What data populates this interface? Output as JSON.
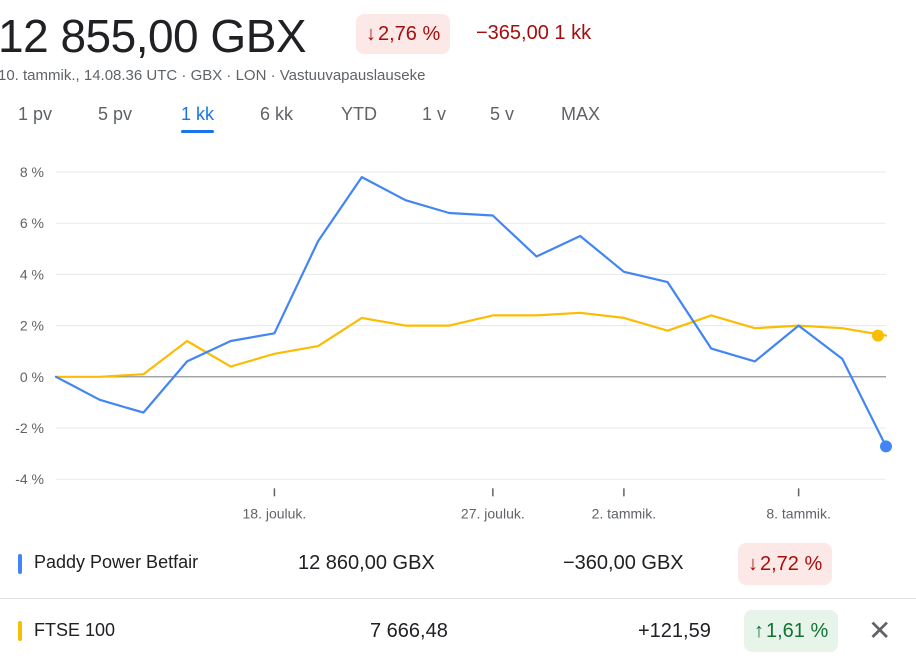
{
  "header": {
    "price": "12 855,00 GBX",
    "change_pct": "2,76 %",
    "change_pct_arrow": "down-arrow",
    "change_abs": "−365,00 1 kk",
    "meta": "10. tammik., 14.08.36 UTC · GBX · LON · Vastuuvapauslauseke"
  },
  "tabs": [
    "1 pv",
    "5 pv",
    "1 kk",
    "6 kk",
    "YTD",
    "1 v",
    "5 v",
    "MAX"
  ],
  "active_tab": "1 kk",
  "legend": [
    {
      "name": "Paddy Power Betfair",
      "value": "12 860,00 GBX",
      "change": "−360,00 GBX",
      "change_pct": "2,72 %",
      "direction": "down",
      "color": "#4285f4"
    },
    {
      "name": "FTSE 100",
      "value": "7 666,48",
      "change": "+121,59",
      "change_pct": "1,61 %",
      "direction": "up",
      "color": "#fbbc04"
    }
  ],
  "close_icon": "close-icon",
  "colors": {
    "negative": "#a50e0e",
    "negative_bg": "#fce8e6",
    "positive": "#137333",
    "positive_bg": "#e6f4ea",
    "accent": "#1a73e8"
  },
  "chart_data": {
    "type": "line",
    "y_tick_labels": [
      "8 %",
      "6 %",
      "4 %",
      "2 %",
      "0 %",
      "-2 %",
      "-4 %"
    ],
    "y_ticks": [
      8,
      6,
      4,
      2,
      0,
      -2,
      -4
    ],
    "ylim": [
      -4.2,
      8.2
    ],
    "x_tick_labels": [
      {
        "label": "18. jouluk.",
        "index": 5
      },
      {
        "label": "27. jouluk.",
        "index": 10
      },
      {
        "label": "2. tammik.",
        "index": 13
      },
      {
        "label": "8. tammik.",
        "index": 17
      }
    ],
    "n_points": 20,
    "series": [
      {
        "name": "Paddy Power Betfair",
        "color": "#4285f4",
        "values": [
          0.0,
          -0.9,
          -1.4,
          0.6,
          1.4,
          1.7,
          5.3,
          7.8,
          6.9,
          6.4,
          6.3,
          4.7,
          5.5,
          4.1,
          3.7,
          1.1,
          0.6,
          2.0,
          0.7,
          -2.72
        ]
      },
      {
        "name": "FTSE 100",
        "color": "#fbbc04",
        "values": [
          0.0,
          0.0,
          0.1,
          1.4,
          0.4,
          0.9,
          1.2,
          2.3,
          2.0,
          2.0,
          2.4,
          2.4,
          2.5,
          2.3,
          1.8,
          2.4,
          1.9,
          2.0,
          1.9,
          1.61
        ]
      }
    ],
    "baseline": 0,
    "grid": true
  }
}
